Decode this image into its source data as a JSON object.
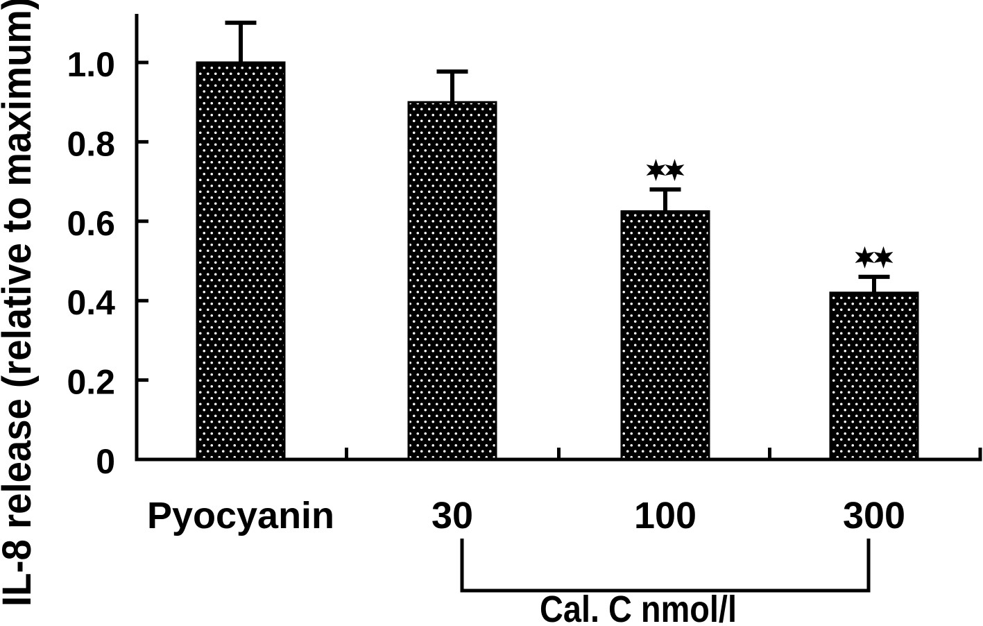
{
  "colors": {
    "ink": "#000000",
    "background": "#ffffff"
  },
  "chart_data": {
    "type": "bar",
    "title": "",
    "ylabel": "IL-8 release (relative to maximum)",
    "xlabel": "",
    "categories": [
      "Pyocyanin",
      "30",
      "100",
      "300"
    ],
    "values": [
      1.0,
      0.9,
      0.625,
      0.42
    ],
    "error_up": [
      0.1,
      0.077,
      0.055,
      0.04
    ],
    "significance": [
      "",
      "",
      "**",
      "**"
    ],
    "ytick_labels": [
      "0",
      "0.2",
      "0.4",
      "0.6",
      "0.8",
      "1.0"
    ],
    "ytick_values": [
      0,
      0.2,
      0.4,
      0.6,
      0.8,
      1.0
    ],
    "ylim": [
      0,
      1.12
    ],
    "grid": "off",
    "legend": "none",
    "bar_fill": "black with staggered white dot pattern",
    "group_bracket": {
      "start_index": 1,
      "end_index": 3,
      "label": "Cal. C nmol/l"
    }
  }
}
